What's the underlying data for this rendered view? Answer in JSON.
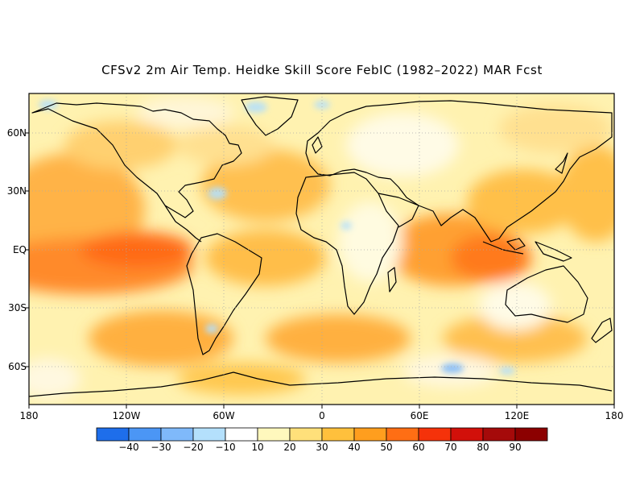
{
  "title": "CFSv2 2m Air Temp. Heidke Skill Score FebIC (1982–2022) MAR Fcst",
  "lat_labels": [
    "60N",
    "30N",
    "EQ",
    "30S",
    "60S"
  ],
  "lon_labels": [
    "180",
    "120W",
    "60W",
    "0",
    "60E",
    "120E",
    "180"
  ],
  "colorbar": {
    "labels": [
      "−40",
      "−30",
      "−20",
      "−10",
      "10",
      "20",
      "30",
      "40",
      "50",
      "60",
      "70",
      "80",
      "90"
    ],
    "colors": [
      "#1e6eeb",
      "#4b96f5",
      "#7fb9fa",
      "#b4e0fc",
      "#ffffff",
      "#fff8bd",
      "#ffe07a",
      "#ffc03c",
      "#ff9e1e",
      "#ff6e14",
      "#f5320a",
      "#d2100a",
      "#a50a0a",
      "#8c0000"
    ]
  },
  "map": {
    "projection": "cylindrical equidistant",
    "lon_range": [
      -180,
      180
    ],
    "lat_range": [
      -78,
      78
    ],
    "grid": "dotted at 30-degree intervals",
    "field": "Heidke skill score, mostly positive (yellow to orange), highest over tropical Pacific and Indian Ocean"
  }
}
